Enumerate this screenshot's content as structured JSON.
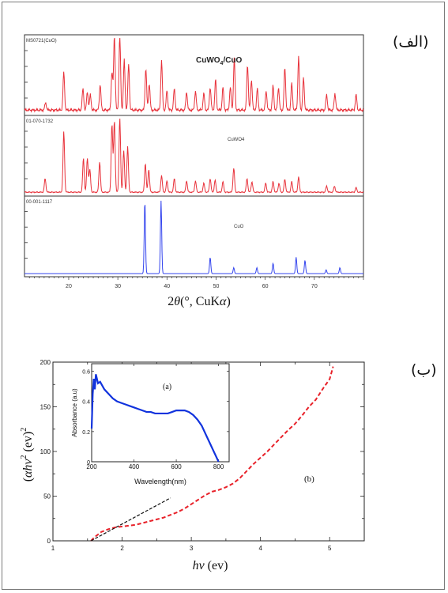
{
  "panel_labels": {
    "a": "(الف)",
    "b": "(ب)"
  },
  "chart_data": [
    {
      "type": "line",
      "panel": "a",
      "xlabel_math": {
        "two": "2",
        "theta": "θ",
        "rest": "(°, CuK",
        "alpha": "α",
        "close": ")"
      },
      "xlim": [
        11,
        80
      ],
      "xticks": [
        20,
        30,
        40,
        50,
        60,
        70
      ],
      "subpanels": [
        {
          "label": "MS0721(CuO)",
          "annotation": "CuWO",
          "annotation_sub": "4",
          "annotation_tail": "/CuO",
          "color": "#e8323b",
          "peaks": [
            [
              15.3,
              0.1
            ],
            [
              19.0,
              0.5
            ],
            [
              22.9,
              0.28
            ],
            [
              23.8,
              0.24
            ],
            [
              24.4,
              0.2
            ],
            [
              26.4,
              0.34
            ],
            [
              28.8,
              0.5
            ],
            [
              29.3,
              1.0
            ],
            [
              30.4,
              1.0
            ],
            [
              31.3,
              0.66
            ],
            [
              32.2,
              0.6
            ],
            [
              35.7,
              0.55
            ],
            [
              36.4,
              0.35
            ],
            [
              38.9,
              0.65
            ],
            [
              40.0,
              0.26
            ],
            [
              41.5,
              0.28
            ],
            [
              44.0,
              0.24
            ],
            [
              45.8,
              0.25
            ],
            [
              47.5,
              0.22
            ],
            [
              48.8,
              0.3
            ],
            [
              49.9,
              0.4
            ],
            [
              51.4,
              0.3
            ],
            [
              52.9,
              0.3
            ],
            [
              53.7,
              0.68
            ],
            [
              56.4,
              0.6
            ],
            [
              57.2,
              0.4
            ],
            [
              58.4,
              0.28
            ],
            [
              60.2,
              0.25
            ],
            [
              61.6,
              0.32
            ],
            [
              62.7,
              0.3
            ],
            [
              64.0,
              0.56
            ],
            [
              65.4,
              0.35
            ],
            [
              66.8,
              0.7
            ],
            [
              67.8,
              0.42
            ],
            [
              72.5,
              0.2
            ],
            [
              74.2,
              0.22
            ],
            [
              78.5,
              0.2
            ]
          ]
        },
        {
          "label": "01-070-1732",
          "annotation": "CuWO4",
          "color": "#e8323b",
          "peaks": [
            [
              15.2,
              0.18
            ],
            [
              19.0,
              0.8
            ],
            [
              23.0,
              0.45
            ],
            [
              23.8,
              0.45
            ],
            [
              24.3,
              0.3
            ],
            [
              26.3,
              0.4
            ],
            [
              28.8,
              0.9
            ],
            [
              29.3,
              0.95
            ],
            [
              30.4,
              0.98
            ],
            [
              31.2,
              0.55
            ],
            [
              32.0,
              0.6
            ],
            [
              35.6,
              0.38
            ],
            [
              36.3,
              0.3
            ],
            [
              38.9,
              0.22
            ],
            [
              40.0,
              0.15
            ],
            [
              41.5,
              0.18
            ],
            [
              44.0,
              0.15
            ],
            [
              45.8,
              0.15
            ],
            [
              47.5,
              0.12
            ],
            [
              48.8,
              0.18
            ],
            [
              49.8,
              0.16
            ],
            [
              51.4,
              0.14
            ],
            [
              53.6,
              0.32
            ],
            [
              56.3,
              0.18
            ],
            [
              57.3,
              0.14
            ],
            [
              60.1,
              0.12
            ],
            [
              61.6,
              0.14
            ],
            [
              62.8,
              0.12
            ],
            [
              64.0,
              0.17
            ],
            [
              65.4,
              0.14
            ],
            [
              66.8,
              0.2
            ],
            [
              72.5,
              0.08
            ],
            [
              74.1,
              0.08
            ],
            [
              78.5,
              0.06
            ]
          ]
        },
        {
          "label": "00-001-1117",
          "annotation": "CuO",
          "color": "#3344ee",
          "peaks": [
            [
              35.5,
              0.98
            ],
            [
              38.8,
              0.98
            ],
            [
              48.8,
              0.22
            ],
            [
              53.6,
              0.08
            ],
            [
              58.3,
              0.08
            ],
            [
              61.6,
              0.14
            ],
            [
              66.3,
              0.22
            ],
            [
              68.1,
              0.18
            ],
            [
              72.4,
              0.05
            ],
            [
              75.2,
              0.08
            ]
          ]
        }
      ]
    },
    {
      "type": "line",
      "panel": "b",
      "xlabel_math": {
        "h": "h",
        "nu": "ν",
        "unit": " (ev)"
      },
      "ylabel_math": {
        "open": "(",
        "alpha": "α",
        "h": "h",
        "nu": "ν",
        "exp": "2",
        "unit": " (ev)",
        "unit_exp": "2"
      },
      "xlim": [
        1,
        5.5
      ],
      "ylim": [
        0,
        200
      ],
      "xticks": [
        1,
        2,
        3,
        4,
        5
      ],
      "yticks": [
        0,
        50,
        100,
        150,
        200
      ],
      "annotation": "(b)",
      "series": [
        {
          "style": "dashed",
          "color": "#e8222a",
          "x": [
            1.55,
            1.6,
            1.7,
            1.8,
            1.9,
            2.0,
            2.1,
            2.2,
            2.3,
            2.4,
            2.5,
            2.6,
            2.7,
            2.8,
            2.9,
            3.0,
            3.1,
            3.2,
            3.3,
            3.4,
            3.5,
            3.6,
            3.7,
            3.8,
            3.9,
            4.0,
            4.1,
            4.2,
            4.3,
            4.4,
            4.5,
            4.6,
            4.7,
            4.8,
            4.9,
            5.0,
            5.05
          ],
          "y": [
            0,
            4,
            10,
            13,
            15,
            16,
            17,
            18,
            20,
            22,
            24,
            26,
            29,
            32,
            36,
            41,
            46,
            51,
            55,
            57,
            60,
            64,
            70,
            78,
            86,
            93,
            100,
            108,
            116,
            124,
            131,
            140,
            150,
            158,
            170,
            181,
            195
          ]
        },
        {
          "style": "dashed",
          "color": "#111111",
          "x": [
            1.55,
            2.7
          ],
          "y": [
            0,
            48
          ]
        }
      ],
      "inset": {
        "label": "(a)",
        "xlabel": "Wavelength(nm)",
        "ylabel": "Absorbance (a.u)",
        "xlim": [
          200,
          850
        ],
        "ylim": [
          0,
          0.65
        ],
        "xticks": [
          200,
          400,
          600,
          800
        ],
        "yticks": [
          0,
          0.2,
          0.4,
          0.6
        ],
        "color": "#1133dd",
        "x": [
          200,
          205,
          210,
          215,
          220,
          230,
          240,
          260,
          280,
          300,
          320,
          340,
          360,
          380,
          400,
          420,
          440,
          460,
          480,
          500,
          520,
          540,
          560,
          580,
          600,
          620,
          640,
          660,
          680,
          700,
          720,
          740,
          760,
          780,
          800
        ],
        "y": [
          0.22,
          0.45,
          0.55,
          0.48,
          0.58,
          0.52,
          0.53,
          0.48,
          0.45,
          0.42,
          0.4,
          0.39,
          0.38,
          0.37,
          0.36,
          0.35,
          0.34,
          0.33,
          0.33,
          0.32,
          0.32,
          0.32,
          0.32,
          0.33,
          0.34,
          0.34,
          0.34,
          0.33,
          0.31,
          0.28,
          0.24,
          0.18,
          0.12,
          0.06,
          0.0
        ]
      }
    }
  ]
}
